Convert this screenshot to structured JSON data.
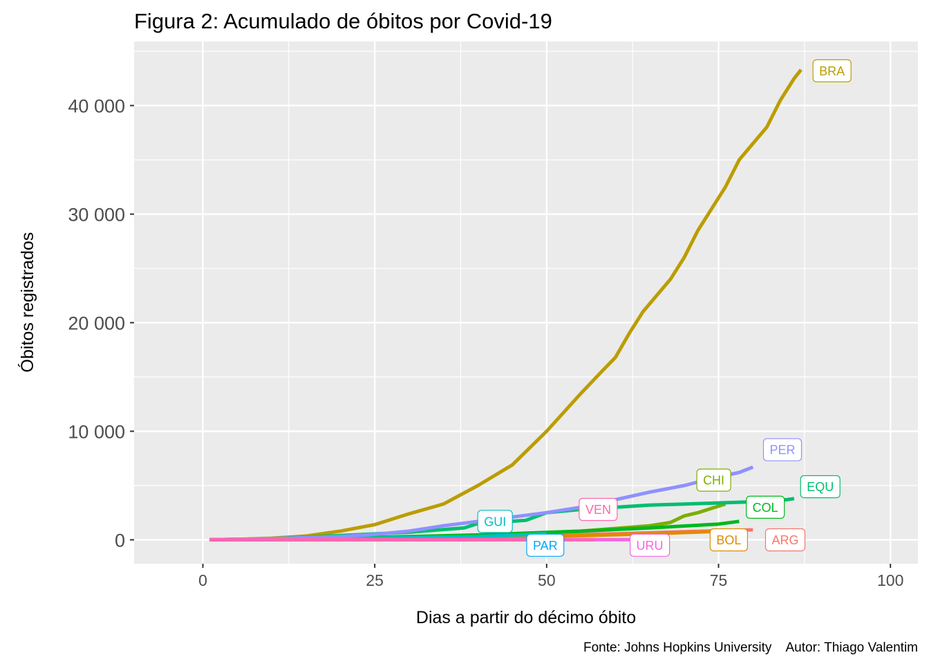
{
  "chart_data": {
    "type": "line",
    "title": "Figura 2: Acumulado de óbitos por Covid-19",
    "xlabel": "Dias a partir do décimo óbito",
    "ylabel": "Óbitos registrados",
    "caption": "Fonte: Johns Hopkins University    Autor: Thiago Valentim",
    "xlim": [
      -10,
      104
    ],
    "ylim": [
      -2200,
      45900
    ],
    "x_ticks": [
      {
        "value": 0,
        "label": "0"
      },
      {
        "value": 25,
        "label": "25"
      },
      {
        "value": 50,
        "label": "50"
      },
      {
        "value": 75,
        "label": "75"
      },
      {
        "value": 100,
        "label": "100"
      }
    ],
    "y_ticks": [
      {
        "value": 0,
        "label": "0"
      },
      {
        "value": 10000,
        "label": "10 000"
      },
      {
        "value": 20000,
        "label": "20 000"
      },
      {
        "value": 30000,
        "label": "30 000"
      },
      {
        "value": 40000,
        "label": "40 000"
      }
    ],
    "series": [
      {
        "name": "ARG",
        "color": "#F8766D",
        "x": [
          1,
          20,
          40,
          60,
          70,
          80
        ],
        "y": [
          10,
          100,
          300,
          550,
          750,
          920
        ],
        "label_at": [
          84.7,
          0
        ]
      },
      {
        "name": "BOL",
        "color": "#E08B00",
        "x": [
          1,
          20,
          40,
          55,
          65,
          75,
          78
        ],
        "y": [
          10,
          60,
          200,
          380,
          550,
          780,
          900
        ],
        "label_at": [
          76.5,
          0
        ]
      },
      {
        "name": "BRA",
        "color": "#BB9D00",
        "x": [
          1,
          5,
          10,
          15,
          20,
          25,
          30,
          35,
          40,
          45,
          50,
          55,
          58,
          60,
          62,
          64,
          66,
          68,
          70,
          72,
          74,
          76,
          78,
          80,
          82,
          84,
          86,
          87
        ],
        "y": [
          10,
          50,
          150,
          350,
          800,
          1400,
          2400,
          3300,
          5000,
          6900,
          10000,
          13500,
          15500,
          16800,
          19000,
          21000,
          22500,
          24000,
          26000,
          28500,
          30500,
          32500,
          35000,
          36500,
          38000,
          40500,
          42500,
          43300
        ],
        "label_at": [
          91.5,
          43200
        ]
      },
      {
        "name": "CHI",
        "color": "#7CAE00",
        "x": [
          1,
          20,
          40,
          55,
          65,
          68,
          70,
          72,
          74,
          76
        ],
        "y": [
          10,
          100,
          400,
          800,
          1300,
          1600,
          2200,
          2500,
          2900,
          3300
        ],
        "label_at": [
          74.3,
          5500
        ]
      },
      {
        "name": "COL",
        "color": "#00B81F",
        "x": [
          1,
          20,
          40,
          55,
          65,
          75,
          78
        ],
        "y": [
          10,
          150,
          450,
          800,
          1100,
          1450,
          1700
        ],
        "label_at": [
          81.8,
          3000
        ]
      },
      {
        "name": "EQU",
        "color": "#00BE70",
        "x": [
          1,
          10,
          20,
          30,
          38,
          40,
          47,
          50,
          55,
          60,
          65,
          70,
          75,
          80,
          85,
          86
        ],
        "y": [
          10,
          100,
          400,
          700,
          1100,
          1500,
          1800,
          2500,
          2800,
          3000,
          3200,
          3300,
          3400,
          3500,
          3700,
          3800
        ],
        "label_at": [
          89.8,
          4900
        ]
      },
      {
        "name": "GUI",
        "color": "#00BFC4",
        "x": [
          1,
          20,
          40,
          50
        ],
        "y": [
          10,
          100,
          300,
          550
        ],
        "label_at": [
          42.5,
          1700
        ]
      },
      {
        "name": "PAR",
        "color": "#00A9FF",
        "x": [
          1,
          20,
          35,
          45,
          52
        ],
        "y": [
          5,
          10,
          12,
          13,
          15
        ],
        "label_at": [
          49.8,
          -500
        ]
      },
      {
        "name": "PER",
        "color": "#8F91FF",
        "x": [
          1,
          10,
          20,
          25,
          30,
          35,
          40,
          45,
          50,
          55,
          60,
          65,
          70,
          75,
          78,
          80
        ],
        "y": [
          10,
          100,
          300,
          500,
          800,
          1300,
          1700,
          2100,
          2500,
          3000,
          3700,
          4400,
          5000,
          5800,
          6200,
          6700
        ],
        "label_at": [
          84.3,
          8300
        ]
      },
      {
        "name": "URU",
        "color": "#F564E3",
        "x": [
          1,
          20,
          40,
          55,
          60,
          65
        ],
        "y": [
          5,
          10,
          15,
          18,
          20,
          22
        ],
        "label_at": [
          65,
          -500
        ]
      },
      {
        "name": "VEN",
        "color": "#FF64B0",
        "x": [
          1,
          15,
          30,
          45,
          57
        ],
        "y": [
          5,
          8,
          10,
          10,
          12
        ],
        "label_at": [
          57.5,
          2800
        ]
      }
    ]
  }
}
